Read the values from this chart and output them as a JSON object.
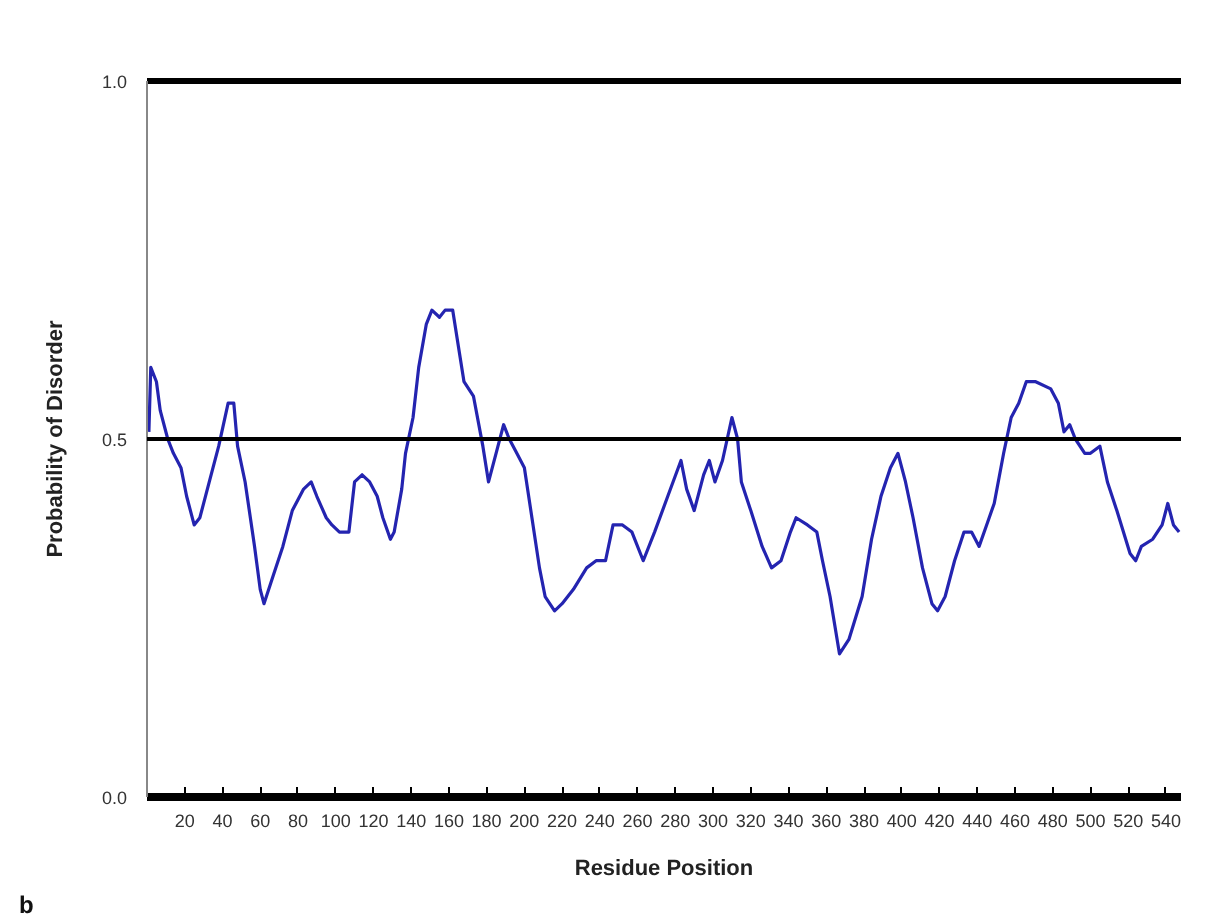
{
  "chart_data": {
    "type": "line",
    "xlabel": "Residue Position",
    "ylabel": "Probability of Disorder",
    "annotations": [
      "b"
    ],
    "x": [
      1,
      2,
      5,
      7,
      11,
      14,
      18,
      21,
      25,
      28,
      33,
      38,
      43,
      46,
      48,
      52,
      57,
      60,
      62,
      67,
      72,
      77,
      83,
      87,
      90,
      95,
      98,
      102,
      107,
      110,
      114,
      118,
      122,
      125,
      129,
      131,
      135,
      137,
      141,
      144,
      148,
      151,
      155,
      158,
      162,
      165,
      168,
      173,
      178,
      181,
      185,
      189,
      192,
      196,
      200,
      204,
      208,
      211,
      216,
      220,
      226,
      233,
      238,
      243,
      247,
      252,
      257,
      263,
      269,
      276,
      283,
      286,
      290,
      295,
      298,
      301,
      305,
      310,
      313,
      315,
      320,
      326,
      331,
      336,
      341,
      344,
      350,
      355,
      358,
      362,
      367,
      372,
      379,
      384,
      389,
      394,
      398,
      402,
      406,
      411,
      416,
      419,
      423,
      428,
      433,
      437,
      441,
      445,
      449,
      454,
      458,
      462,
      466,
      471,
      479,
      483,
      486,
      489,
      492,
      497,
      500,
      505,
      509,
      514,
      521,
      524,
      527,
      533,
      538,
      541,
      544,
      547
    ],
    "values": [
      0.51,
      0.6,
      0.58,
      0.54,
      0.5,
      0.48,
      0.46,
      0.42,
      0.38,
      0.39,
      0.44,
      0.49,
      0.55,
      0.55,
      0.49,
      0.44,
      0.35,
      0.29,
      0.27,
      0.31,
      0.35,
      0.4,
      0.43,
      0.44,
      0.42,
      0.39,
      0.38,
      0.37,
      0.37,
      0.44,
      0.45,
      0.44,
      0.42,
      0.39,
      0.36,
      0.37,
      0.43,
      0.48,
      0.53,
      0.6,
      0.66,
      0.68,
      0.67,
      0.68,
      0.68,
      0.63,
      0.58,
      0.56,
      0.49,
      0.44,
      0.48,
      0.52,
      0.5,
      0.48,
      0.46,
      0.39,
      0.32,
      0.28,
      0.26,
      0.27,
      0.29,
      0.32,
      0.33,
      0.33,
      0.38,
      0.38,
      0.37,
      0.33,
      0.37,
      0.42,
      0.47,
      0.43,
      0.4,
      0.45,
      0.47,
      0.44,
      0.47,
      0.53,
      0.5,
      0.44,
      0.4,
      0.35,
      0.32,
      0.33,
      0.37,
      0.39,
      0.38,
      0.37,
      0.33,
      0.28,
      0.2,
      0.22,
      0.28,
      0.36,
      0.42,
      0.46,
      0.48,
      0.44,
      0.39,
      0.32,
      0.27,
      0.26,
      0.28,
      0.33,
      0.37,
      0.37,
      0.35,
      0.38,
      0.41,
      0.48,
      0.53,
      0.55,
      0.58,
      0.58,
      0.57,
      0.55,
      0.51,
      0.52,
      0.5,
      0.48,
      0.48,
      0.49,
      0.44,
      0.4,
      0.34,
      0.33,
      0.35,
      0.36,
      0.38,
      0.41,
      0.38,
      0.37
    ],
    "color": "#2424b0",
    "xlim": [
      0,
      548
    ],
    "xticks": [
      20,
      40,
      60,
      80,
      100,
      120,
      140,
      160,
      180,
      200,
      220,
      240,
      260,
      280,
      300,
      320,
      340,
      360,
      380,
      400,
      420,
      440,
      460,
      480,
      500,
      520,
      540
    ],
    "ylim": [
      0,
      1
    ],
    "yticks": [
      {
        "value": 0,
        "label": "0.0"
      },
      0.5,
      {
        "value": 1,
        "label": "1.0"
      }
    ],
    "ref_lines": [
      {
        "axis": "y",
        "value": 0.5,
        "color": "#000000"
      }
    ],
    "grid": false
  }
}
